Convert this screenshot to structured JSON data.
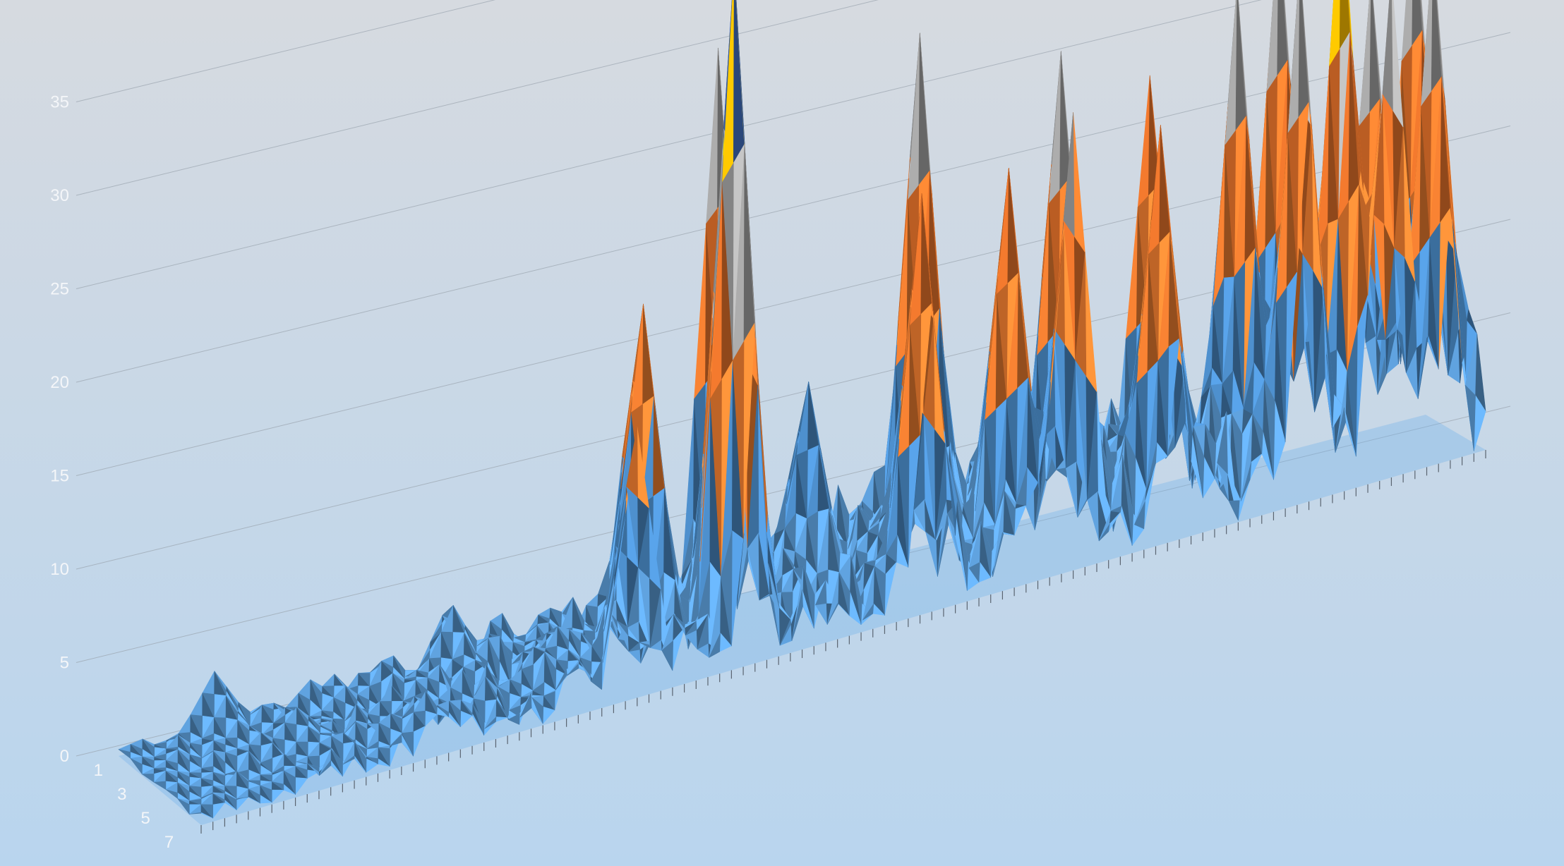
{
  "chart_data": {
    "type": "surface",
    "title": "",
    "xlabel": "",
    "ylabel": "",
    "zlim": [
      0,
      35
    ],
    "z_ticks": [
      0,
      5,
      10,
      15,
      20,
      25,
      30,
      35
    ],
    "depth_labels": [
      "1",
      "3",
      "5",
      "7"
    ],
    "grid": "on",
    "legend": "none",
    "colors": {
      "background_top": "#d6dae0",
      "background_bottom": "#b9d5ee",
      "band_0_5": "#5b9bd5",
      "band_5_10": "#4a89c4",
      "band_10_15": "#ed7d31",
      "band_15_20": "#e8742c",
      "band_20_25": "#a5a5a5",
      "band_25_30": "#ffc000",
      "band_30_35": "#4472c4",
      "band_35_40": "#70ad47",
      "gridline": "#9aa4ae",
      "floor": "#6fb2ec"
    },
    "x_count": 110,
    "peaks": [
      {
        "x": 8,
        "z": 3.2
      },
      {
        "x": 12,
        "z": 2.1
      },
      {
        "x": 20,
        "z": 3.0
      },
      {
        "x": 27,
        "z": 4.0
      },
      {
        "x": 33,
        "z": 3.2
      },
      {
        "x": 37,
        "z": 14.5
      },
      {
        "x": 42,
        "z": 18.0
      },
      {
        "x": 47,
        "z": 36.5
      },
      {
        "x": 50,
        "z": 29.5
      },
      {
        "x": 55,
        "z": 12.0
      },
      {
        "x": 62,
        "z": 22.0
      },
      {
        "x": 66,
        "z": 28.0
      },
      {
        "x": 71,
        "z": 21.0
      },
      {
        "x": 74,
        "z": 24.5
      },
      {
        "x": 77,
        "z": 25.5
      },
      {
        "x": 83,
        "z": 21.5
      },
      {
        "x": 86,
        "z": 22.0
      },
      {
        "x": 91,
        "z": 27.0
      },
      {
        "x": 94,
        "z": 28.5
      },
      {
        "x": 96,
        "z": 29.0
      },
      {
        "x": 99,
        "z": 31.5
      },
      {
        "x": 101,
        "z": 27.0
      },
      {
        "x": 103,
        "z": 25.0
      },
      {
        "x": 106,
        "z": 27.0
      },
      {
        "x": 108,
        "z": 28.0
      }
    ]
  }
}
